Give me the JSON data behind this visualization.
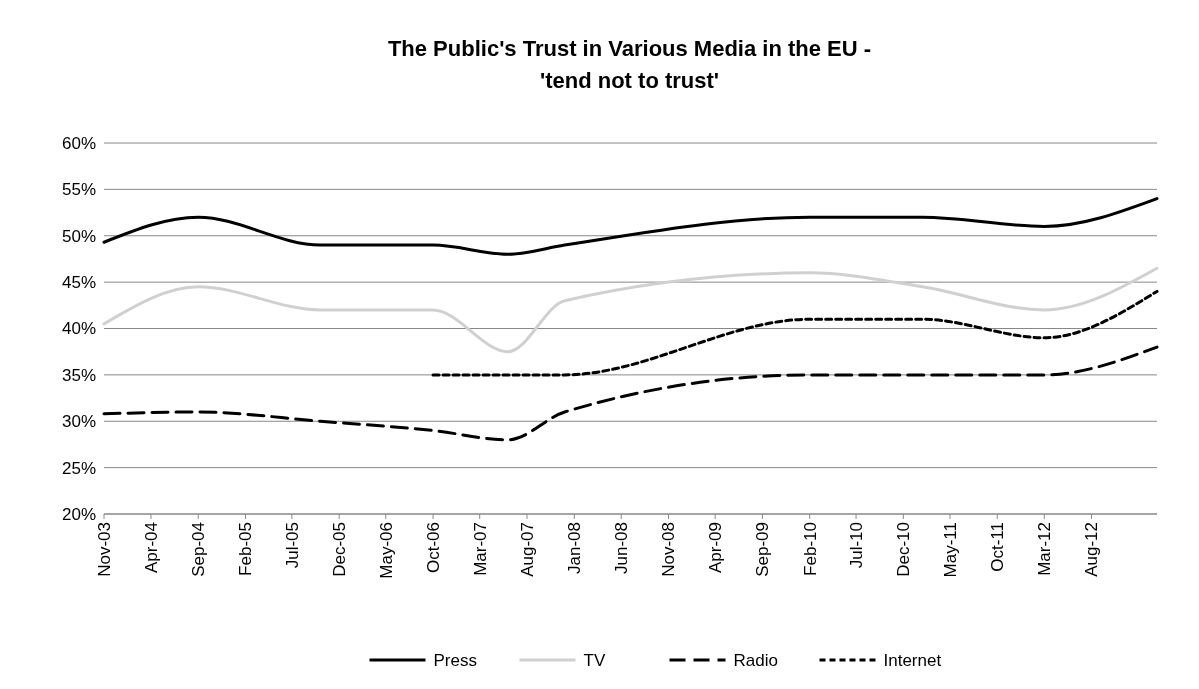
{
  "chart_data": {
    "type": "line",
    "title": "The Public's Trust in Various Media in the EU -\n'tend not to trust'",
    "x": [
      "2003-11",
      "2004-09",
      "2005-10",
      "2006-10",
      "2007-06",
      "2007-12",
      "2010-02",
      "2011-02",
      "2012-03",
      "2013-03"
    ],
    "series": [
      {
        "name": "Press",
        "color": "#000000",
        "line_style": "solid",
        "values": [
          49.3,
          52,
          49,
          49,
          48,
          49,
          52,
          52,
          51,
          54
        ]
      },
      {
        "name": "TV",
        "color": "#d0d0d0",
        "line_style": "solid",
        "values": [
          40.5,
          44.5,
          42,
          42,
          37.5,
          43,
          46,
          44.5,
          42,
          46.5
        ]
      },
      {
        "name": "Radio",
        "color": "#000000",
        "line_style": "dashed",
        "values": [
          30.8,
          31,
          30,
          29,
          28,
          31,
          35,
          35,
          35,
          38
        ]
      },
      {
        "name": "Internet",
        "color": "#000000",
        "line_style": "dotted",
        "values": [
          null,
          null,
          null,
          35,
          35,
          35,
          41,
          41,
          39,
          44
        ]
      }
    ],
    "xlim": [
      "2003-11",
      "2013-03"
    ],
    "xticks": [
      {
        "value": "2003-11",
        "label": "Nov-03"
      },
      {
        "value": "2004-04",
        "label": "Apr-04"
      },
      {
        "value": "2004-09",
        "label": "Sep-04"
      },
      {
        "value": "2005-02",
        "label": "Feb-05"
      },
      {
        "value": "2005-07",
        "label": "Jul-05"
      },
      {
        "value": "2005-12",
        "label": "Dec-05"
      },
      {
        "value": "2006-05",
        "label": "May-06"
      },
      {
        "value": "2006-10",
        "label": "Oct-06"
      },
      {
        "value": "2007-03",
        "label": "Mar-07"
      },
      {
        "value": "2007-08",
        "label": "Aug-07"
      },
      {
        "value": "2008-01",
        "label": "Jan-08"
      },
      {
        "value": "2008-06",
        "label": "Jun-08"
      },
      {
        "value": "2008-11",
        "label": "Nov-08"
      },
      {
        "value": "2009-04",
        "label": "Apr-09"
      },
      {
        "value": "2009-09",
        "label": "Sep-09"
      },
      {
        "value": "2010-02",
        "label": "Feb-10"
      },
      {
        "value": "2010-07",
        "label": "Jul-10"
      },
      {
        "value": "2010-12",
        "label": "Dec-10"
      },
      {
        "value": "2011-05",
        "label": "May-11"
      },
      {
        "value": "2011-10",
        "label": "Oct-11"
      },
      {
        "value": "2012-03",
        "label": "Mar-12"
      },
      {
        "value": "2012-08",
        "label": "Aug-12"
      }
    ],
    "ylim": [
      20,
      60
    ],
    "yticks": [
      {
        "value": 20,
        "label": "20%"
      },
      {
        "value": 25,
        "label": "25%"
      },
      {
        "value": 30,
        "label": "30%"
      },
      {
        "value": 35,
        "label": "35%"
      },
      {
        "value": 40,
        "label": "40%"
      },
      {
        "value": 45,
        "label": "45%"
      },
      {
        "value": 50,
        "label": "50%"
      },
      {
        "value": 55,
        "label": "55%"
      },
      {
        "value": 60,
        "label": "60%"
      }
    ],
    "grid": "y",
    "legend": "bottom",
    "marker": "none"
  }
}
